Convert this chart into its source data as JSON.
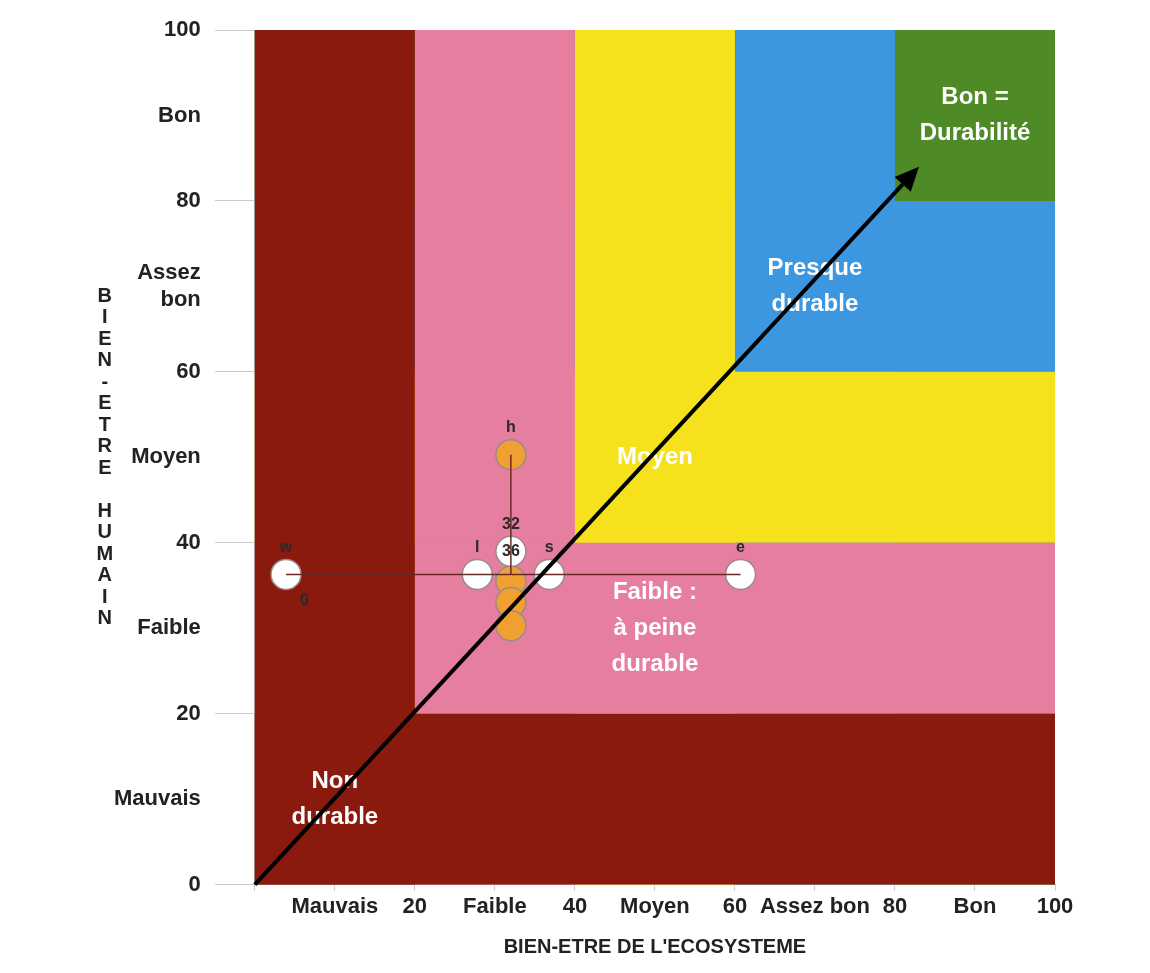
{
  "chart_data": {
    "type": "scatter",
    "xlabel": "BIEN-ETRE DE L'ECOSYSTEME",
    "ylabel": "BIEN-ETRE HUMAIN",
    "xlim": [
      0,
      100
    ],
    "ylim": [
      0,
      100
    ],
    "xticks": [
      {
        "value": 0,
        "label": null
      },
      {
        "value": 10,
        "label": "Mauvais"
      },
      20,
      {
        "value": 30,
        "label": "Faible"
      },
      40,
      {
        "value": 50,
        "label": "Moyen"
      },
      60,
      {
        "value": 70,
        "label": "Assez bon"
      },
      80,
      {
        "value": 90,
        "label": "Bon"
      },
      100
    ],
    "yticks": [
      0,
      {
        "value": 10,
        "label": "Mauvais"
      },
      20,
      {
        "value": 30,
        "label": "Faible"
      },
      40,
      {
        "value": 50,
        "label": "Moyen"
      },
      60,
      {
        "value": 70,
        "label": "Assez bon"
      },
      80,
      {
        "value": 90,
        "label": "Bon"
      },
      100
    ],
    "grid": false,
    "legend": false,
    "marker": "circle",
    "bands": [
      {
        "axis": "x",
        "from": 80,
        "to": 100,
        "color": "#4e8a26",
        "label": "Bon =\nDurabilité"
      },
      {
        "axis": "y",
        "from": 80,
        "to": 100,
        "color": "#4e8a26"
      },
      {
        "axis": "x",
        "from": 60,
        "to": 80,
        "color": "#3c96e0",
        "label": "Presque\ndurable"
      },
      {
        "axis": "y",
        "from": 60,
        "to": 80,
        "color": "#3c96e0"
      },
      {
        "axis": "x",
        "from": 40,
        "to": 60,
        "color": "#f5e11c",
        "label": "Moyen"
      },
      {
        "axis": "y",
        "from": 40,
        "to": 60,
        "color": "#f5e11c"
      },
      {
        "axis": "x",
        "from": 20,
        "to": 40,
        "color": "#e67ea0"
      },
      {
        "axis": "y",
        "from": 20,
        "to": 40,
        "color": "#e67ea0",
        "label": "Faible :\nà peine\ndurable"
      },
      {
        "axis": "x",
        "from": 0,
        "to": 20,
        "color": "#8b1a0e",
        "label": "Non\ndurable"
      },
      {
        "axis": "y",
        "from": 0,
        "to": 20,
        "color": "#8b1a0e"
      }
    ],
    "series": [
      {
        "type": "line",
        "color": "#6b2a2a",
        "marker": "none",
        "x": [
          3.9,
          60.7
        ],
        "values": [
          36.3,
          36.3
        ]
      },
      {
        "type": "line",
        "color": "#6b2a2a",
        "marker": "none",
        "x": [
          32,
          32
        ],
        "values": [
          36.3,
          50.3
        ]
      },
      {
        "color": "#ffffff",
        "x": [
          3.9,
          27.8,
          36.8,
          60.7,
          32
        ],
        "values": [
          36.3,
          36.3,
          36.3,
          36.3,
          39
        ]
      },
      {
        "color": "#f0a030",
        "x": [
          32,
          32,
          32,
          32
        ],
        "values": [
          50.3,
          35.5,
          33,
          30.3
        ]
      }
    ],
    "annotations": [
      {
        "text": "w",
        "x": 3.9,
        "y": 36.3
      },
      {
        "text": "l",
        "x": 27.8,
        "y": 36.3
      },
      {
        "text": "s",
        "x": 36.8,
        "y": 36.3
      },
      {
        "text": "e",
        "x": 60.7,
        "y": 36.3
      },
      {
        "text": "h",
        "x": 32,
        "y": 50.3
      },
      {
        "text": "32",
        "x": 32,
        "y": 39
      },
      {
        "text": "36",
        "x": 32,
        "y": 39
      },
      {
        "text": "0",
        "x": 6.2,
        "y": 36.3
      }
    ]
  }
}
